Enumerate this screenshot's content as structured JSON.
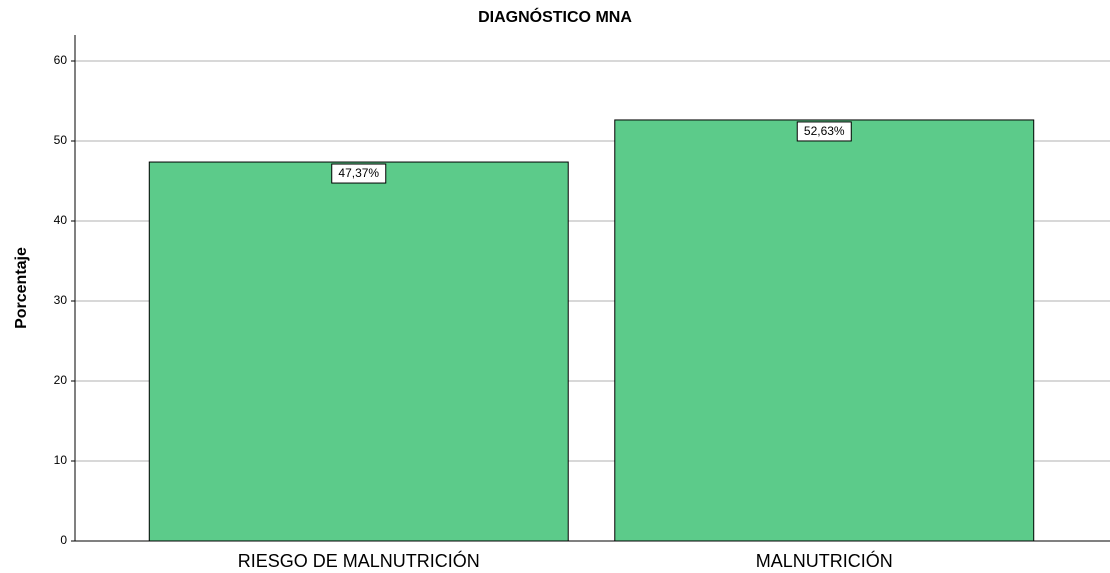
{
  "chart_data": {
    "type": "bar",
    "title": "DIAGNÓSTICO MNA",
    "ylabel": "Porcentaje",
    "categories": [
      "RIESGO DE MALNUTRICIÓN",
      "MALNUTRICIÓN"
    ],
    "values": [
      47.37,
      52.63
    ],
    "value_labels": [
      "47,37%",
      "52,63%"
    ],
    "color": "#5ccb8a",
    "ylim": [
      0,
      63.25
    ],
    "yticks": [
      0,
      10,
      20,
      30,
      40,
      50,
      60
    ],
    "grid": true
  }
}
